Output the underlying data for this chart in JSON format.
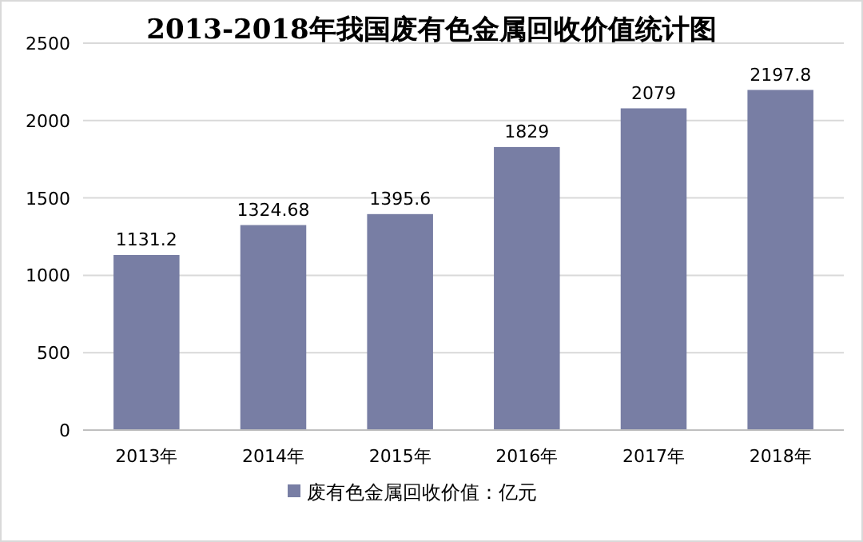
{
  "chart_data": {
    "type": "bar",
    "title": "2013-2018年我国废有色金属回收价值统计图",
    "categories": [
      "2013年",
      "2014年",
      "2015年",
      "2016年",
      "2017年",
      "2018年"
    ],
    "series": [
      {
        "name": "废有色金属回收价值：亿元",
        "color": "#787ea4",
        "values": [
          1131.2,
          1324.68,
          1395.6,
          1829,
          2079,
          2197.8
        ]
      }
    ],
    "ylim": [
      0,
      2500
    ],
    "yticks": [
      0,
      500,
      1000,
      1500,
      2000,
      2500
    ],
    "grid": "y",
    "data_labels": true,
    "legend": "bottom"
  }
}
